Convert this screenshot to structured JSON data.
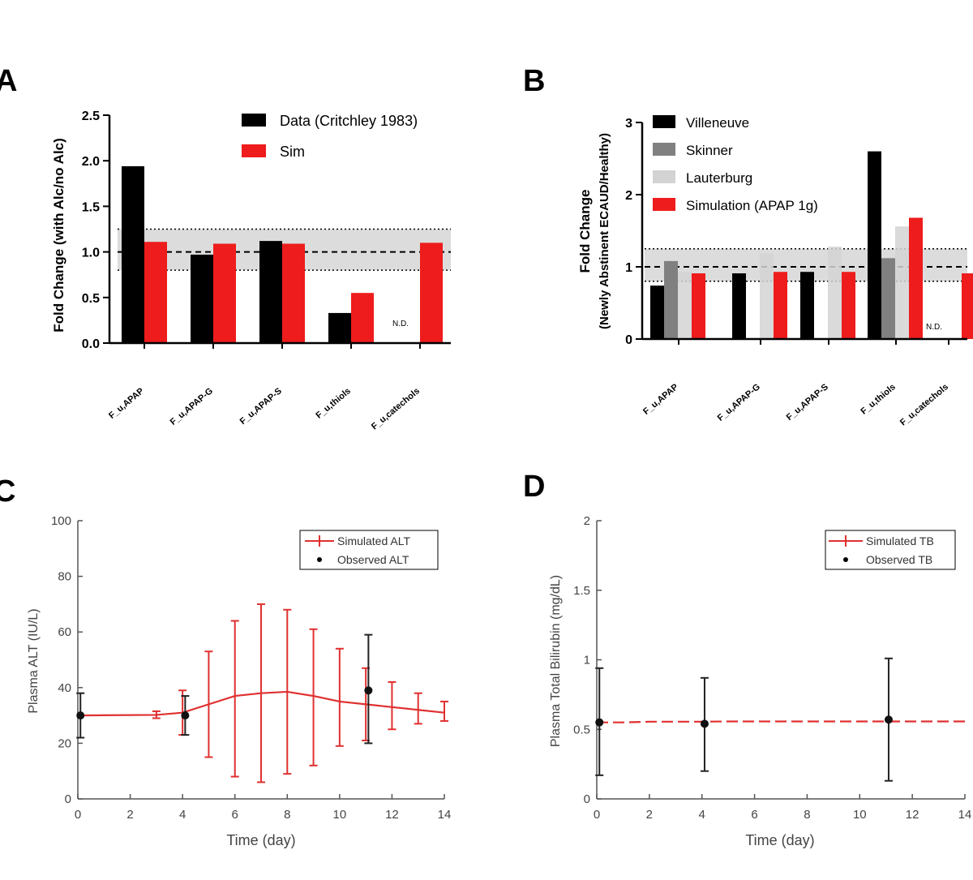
{
  "panels": {
    "a": {
      "label": "A"
    },
    "b": {
      "label": "B"
    },
    "c": {
      "label": "C"
    },
    "d": {
      "label": "D"
    }
  },
  "colors": {
    "black": "#000000",
    "red": "#ee1c1c",
    "darkgray": "#808080",
    "lightgray": "#d3d3d3",
    "band": "#dcdcdc",
    "simline": "#e03030"
  },
  "chart_data": [
    {
      "id": "A",
      "type": "bar",
      "title": "",
      "ylabel": "Fold Change (with Alc/no Alc)",
      "ylim": [
        0,
        2.5
      ],
      "yticks": [
        "0.0",
        "0.5",
        "1.0",
        "1.5",
        "2.0",
        "2.5"
      ],
      "categories": [
        "F_u,APAP",
        "F_u,APAP-G",
        "F_u,APAP-S",
        "F_u,thiols",
        "F_u,catechols"
      ],
      "series": [
        {
          "name": "Data (Critchley 1983)",
          "color": "#000000",
          "values": [
            1.94,
            0.97,
            1.12,
            0.33,
            null
          ]
        },
        {
          "name": "Sim",
          "color": "#ee1c1c",
          "values": [
            1.11,
            1.09,
            1.09,
            0.55,
            1.1
          ]
        }
      ],
      "reference": {
        "line": 1.0,
        "band": [
          0.8,
          1.25
        ]
      },
      "annotation": "N.D."
    },
    {
      "id": "B",
      "type": "bar",
      "title": "",
      "ylabel_line1": "Fold Change",
      "ylabel_line2": "(Newly Abstinent ECAUD/Healthy)",
      "ylim": [
        0,
        3
      ],
      "yticks": [
        "0",
        "1",
        "2",
        "3"
      ],
      "categories": [
        "F_u,APAP",
        "F_u,APAP-G",
        "F_u,APAP-S",
        "F_u,thiols",
        "F_u,catechols"
      ],
      "series": [
        {
          "name": "Villeneuve",
          "color": "#000000",
          "values": [
            0.74,
            0.91,
            0.93,
            2.6,
            null
          ]
        },
        {
          "name": "Skinner",
          "color": "#808080",
          "values": [
            1.08,
            null,
            null,
            1.12,
            null
          ]
        },
        {
          "name": "Lauterburg",
          "color": "#d3d3d3",
          "values": [
            0.93,
            1.19,
            1.28,
            1.56,
            null
          ]
        },
        {
          "name": "Simulation (APAP 1g)",
          "color": "#ee1c1c",
          "values": [
            0.91,
            0.93,
            0.93,
            1.68,
            0.91
          ]
        }
      ],
      "reference": {
        "line": 1.0,
        "band": [
          0.8,
          1.25
        ]
      },
      "annotation": "N.D."
    },
    {
      "id": "C",
      "type": "line",
      "xlabel": "Time (day)",
      "ylabel": "Plasma ALT (IU/L)",
      "xlim": [
        0,
        14
      ],
      "ylim": [
        0,
        100
      ],
      "xticks": [
        "0",
        "2",
        "4",
        "6",
        "8",
        "10",
        "12",
        "14"
      ],
      "yticks": [
        "0",
        "20",
        "40",
        "60",
        "80",
        "100"
      ],
      "series": [
        {
          "name": "Simulated ALT",
          "color": "#e03030",
          "x": [
            0,
            3,
            4,
            5,
            6,
            7,
            8,
            9,
            10,
            11,
            12,
            13,
            14
          ],
          "y": [
            30,
            30.2,
            31,
            34,
            37,
            38,
            38.5,
            37,
            35,
            34,
            33,
            32,
            31
          ],
          "err_x": [
            3,
            4,
            5,
            6,
            7,
            8,
            9,
            10,
            11,
            12,
            13,
            14
          ],
          "err_lo": [
            29,
            23,
            15,
            8,
            6,
            9,
            12,
            19,
            21,
            25,
            27,
            28
          ],
          "err_hi": [
            31.5,
            39,
            53,
            64,
            70,
            68,
            61,
            54,
            47,
            42,
            38,
            35
          ]
        },
        {
          "name": "Observed ALT",
          "color": "#000000",
          "x": [
            0.1,
            4.1,
            11.1
          ],
          "y": [
            30,
            30,
            39
          ],
          "err_lo": [
            22,
            23,
            20
          ],
          "err_hi": [
            38,
            37,
            59
          ]
        }
      ]
    },
    {
      "id": "D",
      "type": "line",
      "xlabel": "Time (day)",
      "ylabel": "Plasma Total Bilirubin (mg/dL)",
      "xlim": [
        0,
        14
      ],
      "ylim": [
        0,
        2
      ],
      "xticks": [
        "0",
        "2",
        "4",
        "6",
        "8",
        "10",
        "12",
        "14"
      ],
      "yticks": [
        "0",
        "0.5",
        "1",
        "1.5",
        "2"
      ],
      "yticks_values": [
        0,
        0.5,
        1,
        1.5,
        2
      ],
      "series": [
        {
          "name": "Simulated TB",
          "color": "#e03030",
          "x": [
            0,
            1,
            2,
            3,
            4,
            5,
            6,
            7,
            8,
            9,
            10,
            11,
            12,
            13,
            14
          ],
          "y": [
            0.55,
            0.55,
            0.555,
            0.555,
            0.555,
            0.557,
            0.557,
            0.557,
            0.557,
            0.557,
            0.557,
            0.557,
            0.557,
            0.557,
            0.557
          ]
        },
        {
          "name": "Observed TB",
          "color": "#000000",
          "x": [
            0.1,
            4.1,
            11.1
          ],
          "y": [
            0.55,
            0.54,
            0.57
          ],
          "err_lo": [
            0.17,
            0.2,
            0.13
          ],
          "err_hi": [
            0.94,
            0.87,
            1.01
          ]
        }
      ]
    }
  ]
}
